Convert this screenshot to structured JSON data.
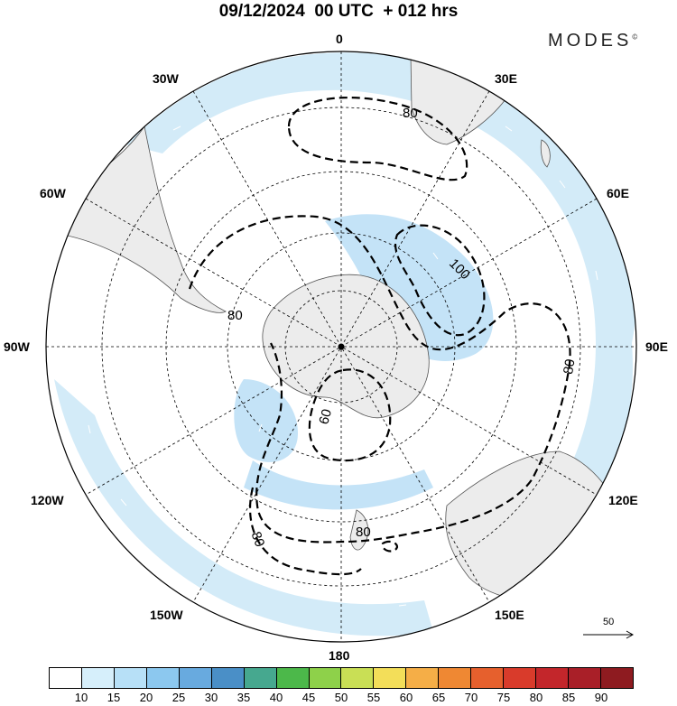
{
  "header": {
    "title": "09/12/2024  00 UTC  + 012 hrs",
    "brand": "MODES",
    "brand_mark": "©"
  },
  "map": {
    "projection": "south-polar-stereographic",
    "longitude_labels": {
      "top": "0",
      "top_right": "30E",
      "right_upper": "60E",
      "right": "90E",
      "right_lower": "120E",
      "bottom_right": "150E",
      "bottom": "180",
      "bottom_left": "150W",
      "left_lower": "120W",
      "left": "90W",
      "left_upper": "60W",
      "top_left": "30W"
    },
    "contour_labels": [
      "80",
      "100",
      "80",
      "80",
      "60",
      "80",
      "80"
    ],
    "colors": {
      "land": "#ececec",
      "ocean": "#ffffff",
      "shade_light": "#cfe8f6",
      "shade_mid": "#b1daf3",
      "contour": "#000000",
      "grid": "#000000"
    }
  },
  "reference_vector": {
    "label": "50"
  },
  "colorbar": {
    "labels": [
      "10",
      "15",
      "20",
      "25",
      "30",
      "35",
      "40",
      "45",
      "50",
      "55",
      "60",
      "65",
      "70",
      "75",
      "80",
      "85",
      "90"
    ],
    "colors": [
      "#ffffff",
      "#d6effb",
      "#b7e0f7",
      "#8cc8ef",
      "#68aadf",
      "#4a8fc7",
      "#46a88f",
      "#4cb84a",
      "#8ed14a",
      "#c9df55",
      "#f3de59",
      "#f5ae47",
      "#ef8833",
      "#e6602d",
      "#d93b2b",
      "#c3262b",
      "#a91f28",
      "#8e1b20"
    ]
  }
}
